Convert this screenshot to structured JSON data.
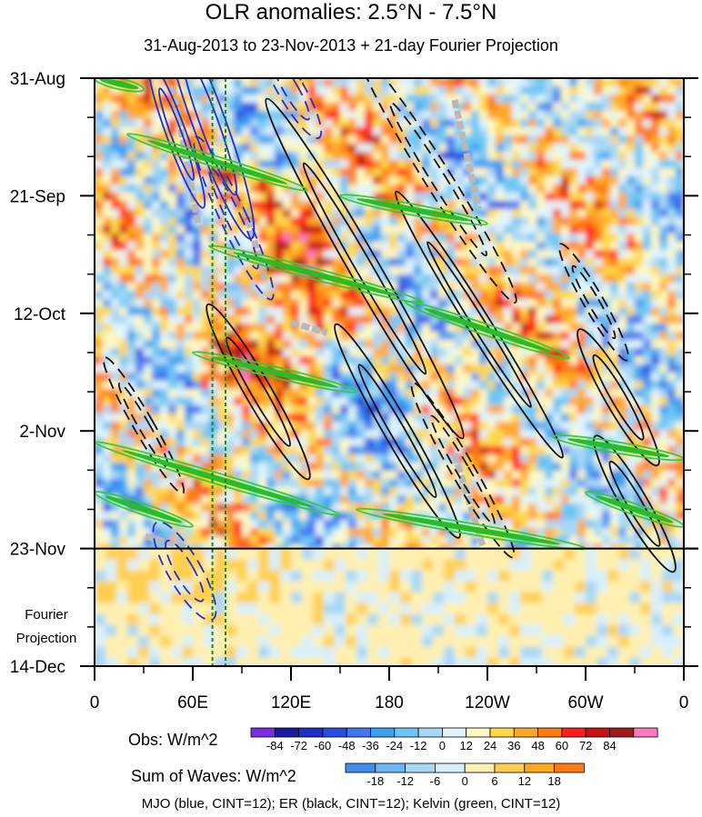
{
  "title": "OLR anomalies: 2.5°N - 7.5°N",
  "subtitle": "31-Aug-2013 to 23-Nov-2013 + 21-day Fourier Projection",
  "projection_label": [
    "Fourier",
    "Projection"
  ],
  "colorbar_obs": {
    "label": "Obs: W/m^2",
    "levels": [
      "-84",
      "-72",
      "-60",
      "-48",
      "-36",
      "-24",
      "-12",
      "0",
      "12",
      "24",
      "36",
      "48",
      "60",
      "72",
      "84"
    ],
    "colors": [
      "#7b2fe0",
      "#1a1aa0",
      "#1f30c8",
      "#2a4ee0",
      "#3f78ee",
      "#3aa0f0",
      "#6cc6f5",
      "#a8d8f5",
      "#e0f4fb",
      "#fff8c0",
      "#ffd84a",
      "#ffa826",
      "#ff7a10",
      "#ff1f1f",
      "#c81010",
      "#a01a1a",
      "#ff78c0"
    ]
  },
  "colorbar_waves": {
    "label": "Sum of Waves: W/m^2",
    "levels": [
      "-18",
      "-12",
      "-6",
      "0",
      "6",
      "12",
      "18"
    ],
    "colors": [
      "#3f8ef0",
      "#6cb6f5",
      "#a8d8f5",
      "#d8f0fb",
      "#fff0b0",
      "#ffd050",
      "#ffa820",
      "#ff7a10"
    ]
  },
  "footer": "MJO (blue, CINT=12); ER (black, CINT=12); Kelvin (green, CINT=12)",
  "chart_data": {
    "type": "heatmap",
    "title": "OLR anomalies: 2.5°N - 7.5°N",
    "x_tick_labels": [
      "0",
      "60E",
      "120E",
      "180",
      "120W",
      "60W",
      "0"
    ],
    "x_tick_lon": [
      0,
      60,
      120,
      180,
      240,
      300,
      360
    ],
    "y_tick_labels": [
      "31-Aug",
      "21-Sep",
      "12-Oct",
      "2-Nov",
      "23-Nov",
      "14-Dec"
    ],
    "y_tick_day": [
      0,
      21,
      42,
      63,
      84,
      105
    ],
    "xlim": [
      0,
      360
    ],
    "ylim_days": [
      0,
      105
    ],
    "observation_end_day": 84,
    "reference_lines_lon": [
      72,
      80
    ],
    "mjo_contours_blue": [
      {
        "lon": 70,
        "day": 8,
        "rx": 10,
        "ry": 22,
        "angle": -20,
        "dashed": false
      },
      {
        "lon": 50,
        "day": 10,
        "rx": 6,
        "ry": 14,
        "angle": -20,
        "dashed": false
      },
      {
        "lon": 85,
        "day": 25,
        "rx": 8,
        "ry": 16,
        "angle": -25,
        "dashed": true
      },
      {
        "lon": 120,
        "day": 2,
        "rx": 8,
        "ry": 10,
        "angle": -30,
        "dashed": true
      },
      {
        "lon": 55,
        "day": 88,
        "rx": 10,
        "ry": 10,
        "angle": -30,
        "dashed": true
      }
    ],
    "er_contours_black": [
      {
        "lon": 165,
        "day": 34,
        "rx": 9,
        "ry": 35,
        "angle": -30,
        "dashed": false
      },
      {
        "lon": 210,
        "day": 18,
        "rx": 8,
        "ry": 26,
        "angle": -32,
        "dashed": true
      },
      {
        "lon": 235,
        "day": 44,
        "rx": 7,
        "ry": 28,
        "angle": -32,
        "dashed": false
      },
      {
        "lon": 185,
        "day": 63,
        "rx": 8,
        "ry": 22,
        "angle": -30,
        "dashed": false
      },
      {
        "lon": 225,
        "day": 70,
        "rx": 7,
        "ry": 18,
        "angle": -30,
        "dashed": true
      },
      {
        "lon": 320,
        "day": 57,
        "rx": 8,
        "ry": 14,
        "angle": -30,
        "dashed": false
      },
      {
        "lon": 330,
        "day": 76,
        "rx": 8,
        "ry": 14,
        "angle": -30,
        "dashed": false
      },
      {
        "lon": 305,
        "day": 40,
        "rx": 6,
        "ry": 12,
        "angle": -30,
        "dashed": true
      },
      {
        "lon": 30,
        "day": 62,
        "rx": 6,
        "ry": 14,
        "angle": -30,
        "dashed": true
      },
      {
        "lon": 100,
        "day": 56,
        "rx": 8,
        "ry": 18,
        "angle": -30,
        "dashed": false
      }
    ],
    "kelvin_bands_green": [
      {
        "lon1": 0,
        "day1": 0,
        "lon2": 30,
        "day2": 2
      },
      {
        "lon1": 20,
        "day1": 10,
        "lon2": 130,
        "day2": 20
      },
      {
        "lon1": 150,
        "day1": 21,
        "lon2": 240,
        "day2": 26
      },
      {
        "lon1": 70,
        "day1": 30,
        "lon2": 200,
        "day2": 40
      },
      {
        "lon1": 190,
        "day1": 40,
        "lon2": 290,
        "day2": 50
      },
      {
        "lon1": 60,
        "day1": 49,
        "lon2": 160,
        "day2": 56
      },
      {
        "lon1": 0,
        "day1": 65,
        "lon2": 150,
        "day2": 78
      },
      {
        "lon1": 160,
        "day1": 77,
        "lon2": 300,
        "day2": 84
      },
      {
        "lon1": 280,
        "day1": 64,
        "lon2": 360,
        "day2": 68
      },
      {
        "lon1": 300,
        "day1": 74,
        "lon2": 360,
        "day2": 80
      },
      {
        "lon1": 0,
        "day1": 74,
        "lon2": 60,
        "day2": 80
      }
    ]
  }
}
